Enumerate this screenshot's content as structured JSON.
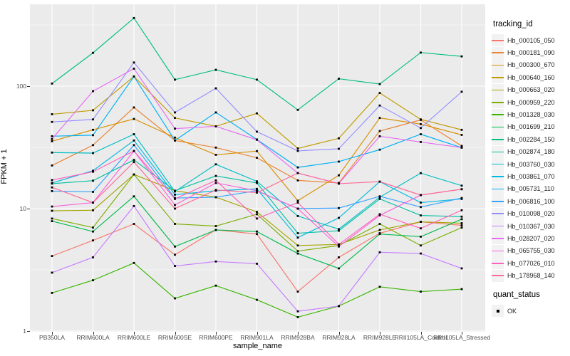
{
  "figure": {
    "xlabel": "sample_name",
    "ylabel": "FPKM + 1",
    "legend_title": "tracking_id",
    "quant_legend_title": "quant_status",
    "quant_status_value": "OK"
  },
  "chart_data": {
    "type": "line",
    "title": "",
    "xlabel": "sample_name",
    "ylabel": "FPKM + 1",
    "y_scale": "log10",
    "ylim": [
      1,
      400
    ],
    "yticks": [
      1,
      10,
      100
    ],
    "y_minor_gridlines": [
      3.1623,
      31.623,
      316.23
    ],
    "grid": true,
    "legend_position": "right",
    "legend_title": "tracking_id",
    "quant_status": {
      "title": "quant_status",
      "values": [
        "OK"
      ],
      "marker": "black-square"
    },
    "panel_bg": "#EBEBEB",
    "grid_color": "#FFFFFF",
    "point_color": "#000000",
    "axis_text_color": "#4D4D4D",
    "categories": [
      "PB350LA",
      "RRIM600LA",
      "RRIM600LE",
      "RRIM600SE",
      "RRIM600PE",
      "RRIM901LA",
      "RRIM928BA",
      "RRIM928LA",
      "RRIM928LE",
      "RRII105LA_Control",
      "RRII105LA_Stressed"
    ],
    "series": [
      {
        "name": "Hb_000105_050",
        "color": "#F8766D",
        "values": [
          4.1,
          5.5,
          7.5,
          4.2,
          6.7,
          6.2,
          2.1,
          4.0,
          6.3,
          7.8,
          7.3
        ]
      },
      {
        "name": "Hb_000181_090",
        "color": "#EA8331",
        "values": [
          22.5,
          33,
          67,
          36,
          31.5,
          26,
          17,
          16.2,
          43,
          53,
          32.5
        ]
      },
      {
        "name": "Hb_000300_670",
        "color": "#D89000",
        "values": [
          35.5,
          44,
          54,
          38,
          27.5,
          29.5,
          11.6,
          18.7,
          55,
          49,
          40
        ]
      },
      {
        "name": "Hb_000640_160",
        "color": "#C09B00",
        "values": [
          59,
          63.5,
          120,
          55,
          47,
          60,
          31,
          37.5,
          88,
          53.5,
          44
        ]
      },
      {
        "name": "Hb_000663_020",
        "color": "#A3A500",
        "values": [
          9.6,
          9.7,
          19,
          14,
          12.4,
          9.4,
          5.0,
          5.1,
          6.7,
          7.8,
          7.6
        ]
      },
      {
        "name": "Hb_000959_220",
        "color": "#7CAE00",
        "values": [
          8.3,
          7.0,
          19,
          7.5,
          7.2,
          9.0,
          4.5,
          5.0,
          7.5,
          5.0,
          7.0
        ]
      },
      {
        "name": "Hb_001328_030",
        "color": "#39B600",
        "values": [
          2.05,
          2.6,
          3.6,
          1.85,
          2.35,
          1.8,
          1.3,
          1.6,
          2.3,
          2.1,
          2.2
        ]
      },
      {
        "name": "Hb_001699_210",
        "color": "#00BB4E",
        "values": [
          7.9,
          6.5,
          12.6,
          4.9,
          6.7,
          6.5,
          4.3,
          3.25,
          6.2,
          5.9,
          8.2
        ]
      },
      {
        "name": "Hb_002284_150",
        "color": "#00BF7D",
        "values": [
          105,
          187,
          360,
          113,
          136,
          113,
          64,
          115,
          104,
          188,
          175
        ]
      },
      {
        "name": "Hb_002874_180",
        "color": "#00C1A3",
        "values": [
          16.0,
          16.9,
          25,
          14,
          18.5,
          16.2,
          6.3,
          6.6,
          12.0,
          8.8,
          8.6
        ]
      },
      {
        "name": "Hb_003760_030",
        "color": "#00BFC4",
        "values": [
          28.7,
          28.4,
          40.5,
          13.8,
          23,
          16.7,
          8.7,
          6.8,
          12.4,
          19.5,
          15.4
        ]
      },
      {
        "name": "Hb_003861_070",
        "color": "#00BAE0",
        "values": [
          16.2,
          20.4,
          36,
          13.0,
          14.0,
          14.5,
          5.8,
          8.4,
          16.6,
          11.2,
          12.0
        ]
      },
      {
        "name": "Hb_005731_110",
        "color": "#00B0F6",
        "values": [
          39,
          39.8,
          120,
          36,
          61,
          36.7,
          21.7,
          24.2,
          30.3,
          40.5,
          31.5
        ]
      },
      {
        "name": "Hb_006816_100",
        "color": "#35A2FF",
        "values": [
          13.9,
          13.7,
          33,
          12.2,
          12.4,
          14.0,
          10.0,
          10.1,
          12.6,
          10.3,
          12.2
        ]
      },
      {
        "name": "Hb_010098_020",
        "color": "#9590FF",
        "values": [
          51,
          53.5,
          156,
          61,
          96,
          42.5,
          29.6,
          30.8,
          69.5,
          45.5,
          90
        ]
      },
      {
        "name": "Hb_010367_030",
        "color": "#C77CFF",
        "values": [
          3.0,
          4.0,
          10.5,
          3.4,
          3.7,
          3.55,
          1.45,
          1.6,
          4.4,
          4.3,
          3.25
        ]
      },
      {
        "name": "Hb_028207_020",
        "color": "#E76BF3",
        "values": [
          37,
          91,
          139,
          45,
          47,
          36.5,
          19.5,
          16.0,
          39,
          35,
          31.5
        ]
      },
      {
        "name": "Hb_065755_030",
        "color": "#FA62DB",
        "values": [
          10.4,
          11.2,
          29.5,
          10.7,
          16.2,
          14.0,
          10.0,
          4.9,
          8.8,
          12.9,
          14.4
        ]
      },
      {
        "name": "Hb_077026_010",
        "color": "#FF62BC",
        "values": [
          17.1,
          20,
          29.6,
          12.0,
          17.0,
          8.3,
          11.2,
          5.1,
          9.0,
          6.9,
          9.7
        ]
      },
      {
        "name": "Hb_178968_140",
        "color": "#FF6A98",
        "values": [
          14.9,
          11.2,
          24,
          10.0,
          14.2,
          13.5,
          19.5,
          16.0,
          16.6,
          12.9,
          14.4
        ]
      }
    ]
  }
}
